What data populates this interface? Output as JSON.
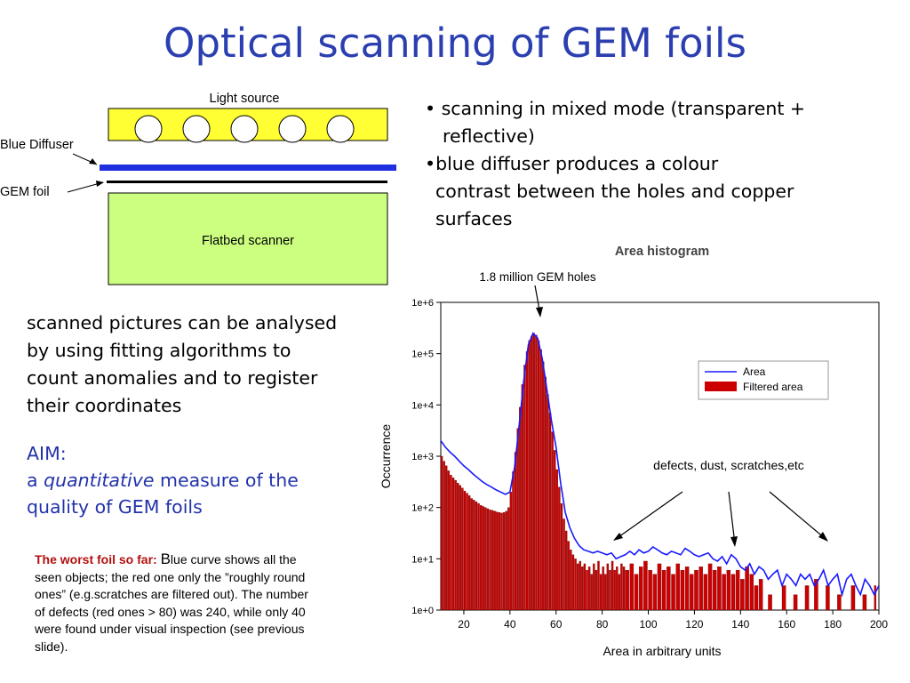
{
  "title": "Optical scanning of GEM foils",
  "diagram": {
    "light_source": "Light source",
    "blue_diffuser": "Blue Diffuser",
    "gem_foil": "GEM foil",
    "flatbed_scanner": "Flatbed scanner",
    "colors": {
      "light": "#ffff33",
      "diffuser": "#1f2fe0",
      "scanner": "#ccff80"
    }
  },
  "bullets": [
    {
      "line1": "• scanning in mixed mode (transparent +",
      "line2": "reflective)"
    },
    {
      "line1": "•blue diffuser produces a colour",
      "line2": "contrast between the holes and copper",
      "line3": "surfaces"
    }
  ],
  "analysis": {
    "l1": "scanned pictures can be analysed",
    "l2": "by using fitting algorithms to",
    "l3": "count anomalies and to register",
    "l4": "their coordinates"
  },
  "aim": {
    "label": "AIM:",
    "pre": "a ",
    "em": "quantitative",
    "post": " measure of the",
    "l2": "quality of GEM foils"
  },
  "worst": {
    "bold": "The worst foil so far: ",
    "bigB": "B",
    "l1": "lue curve shows all the",
    "l2": "seen objects; the red one only the  ”roughly round",
    "l3": "ones” (e.g.scratches are filtered out). The number",
    "l4": "of defects (red ones > 80) was 240, while only 40",
    "l5": "were found under visual inspection (see previous",
    "l6": "slide)."
  },
  "annotations": {
    "holes": "1.8 million GEM holes",
    "defects": "defects, dust, scratches,etc"
  },
  "chart_data": {
    "type": "bar",
    "title": "Area histogram",
    "xlabel": "Area in arbitrary units",
    "ylabel": "Occurrence",
    "log_y": true,
    "xlim": [
      10,
      200
    ],
    "ylim_exponent": [
      0,
      6
    ],
    "x_ticks": [
      "20",
      "40",
      "60",
      "80",
      "100",
      "120",
      "140",
      "160",
      "180",
      "200"
    ],
    "y_ticks": [
      "1e+0",
      "1e+1",
      "1e+2",
      "1e+3",
      "1e+4",
      "1e+5",
      "1e+6"
    ],
    "legend": {
      "position": "top-right",
      "line": "Area",
      "bar": "Filtered area"
    },
    "colors": {
      "area": "#1a1aff",
      "filtered": "#cc0000"
    },
    "area": {
      "x": [
        10,
        12,
        14,
        16,
        18,
        20,
        22,
        24,
        26,
        28,
        30,
        32,
        34,
        36,
        38,
        40,
        42,
        44,
        46,
        48,
        50,
        52,
        54,
        56,
        58,
        60,
        62,
        64,
        66,
        68,
        70,
        72,
        74,
        76,
        78,
        80,
        82,
        84,
        86,
        88,
        90,
        92,
        94,
        96,
        98,
        100,
        102,
        104,
        106,
        108,
        110,
        112,
        114,
        116,
        118,
        120,
        122,
        124,
        126,
        128,
        130,
        132,
        134,
        136,
        138,
        140,
        142,
        144,
        146,
        148,
        150,
        152,
        154,
        156,
        158,
        160,
        162,
        164,
        166,
        168,
        170,
        172,
        174,
        176,
        178,
        180,
        182,
        184,
        186,
        188,
        190,
        192,
        194,
        196,
        198,
        200
      ],
      "y": [
        2000,
        1500,
        1200,
        1000,
        800,
        650,
        550,
        450,
        380,
        320,
        280,
        250,
        220,
        200,
        180,
        200,
        600,
        4000,
        30000,
        150000,
        250000,
        200000,
        80000,
        20000,
        5000,
        1500,
        300,
        80,
        40,
        25,
        18,
        15,
        14,
        13,
        14,
        13,
        12,
        13,
        10,
        11,
        12,
        14,
        12,
        15,
        13,
        14,
        17,
        15,
        13,
        12,
        14,
        13,
        12,
        16,
        14,
        12,
        11,
        12,
        13,
        10,
        9,
        11,
        8,
        12,
        10,
        7,
        6,
        8,
        5,
        7,
        6,
        4,
        5,
        6,
        3,
        5,
        4,
        3,
        5,
        4,
        5,
        3,
        4,
        6,
        3,
        4,
        5,
        2,
        4,
        5,
        3,
        2,
        4,
        3,
        2,
        3
      ]
    },
    "filtered": {
      "x": [
        10,
        11,
        12,
        13,
        14,
        15,
        16,
        17,
        18,
        19,
        20,
        21,
        22,
        23,
        24,
        25,
        26,
        27,
        28,
        29,
        30,
        31,
        32,
        33,
        34,
        35,
        36,
        37,
        38,
        39,
        40,
        41,
        42,
        43,
        44,
        45,
        46,
        47,
        48,
        49,
        50,
        51,
        52,
        53,
        54,
        55,
        56,
        57,
        58,
        59,
        60,
        61,
        62,
        63,
        64,
        65,
        66,
        67,
        68,
        69,
        70,
        71,
        72,
        73,
        74,
        75,
        76,
        77,
        78,
        79,
        80,
        81,
        82,
        83,
        84,
        85,
        86,
        87,
        88,
        89,
        90,
        92,
        94,
        96,
        98,
        100,
        102,
        104,
        106,
        108,
        110,
        112,
        114,
        116,
        118,
        120,
        122,
        124,
        126,
        128,
        130,
        132,
        134,
        136,
        138,
        140,
        142,
        144,
        146,
        148,
        152,
        158,
        163,
        168,
        172,
        177,
        182,
        188,
        193,
        198
      ],
      "y": [
        1000,
        800,
        650,
        520,
        430,
        380,
        340,
        300,
        270,
        240,
        210,
        190,
        170,
        150,
        140,
        130,
        120,
        110,
        105,
        100,
        95,
        90,
        88,
        85,
        82,
        80,
        78,
        80,
        85,
        100,
        200,
        500,
        1200,
        3500,
        9000,
        25000,
        60000,
        110000,
        180000,
        220000,
        250000,
        230000,
        180000,
        120000,
        70000,
        35000,
        16000,
        7000,
        3000,
        1300,
        550,
        250,
        120,
        60,
        35,
        22,
        15,
        12,
        10,
        8,
        9,
        7,
        8,
        6,
        7,
        5,
        8,
        6,
        9,
        5,
        7,
        5,
        8,
        6,
        9,
        6,
        7,
        5,
        8,
        7,
        6,
        8,
        5,
        7,
        9,
        6,
        5,
        8,
        6,
        7,
        5,
        8,
        6,
        7,
        5,
        6,
        7,
        5,
        8,
        6,
        7,
        5,
        6,
        5,
        6,
        4,
        7,
        5,
        3,
        4,
        2,
        3,
        2,
        3,
        4,
        3,
        2,
        3,
        2,
        3
      ]
    }
  }
}
